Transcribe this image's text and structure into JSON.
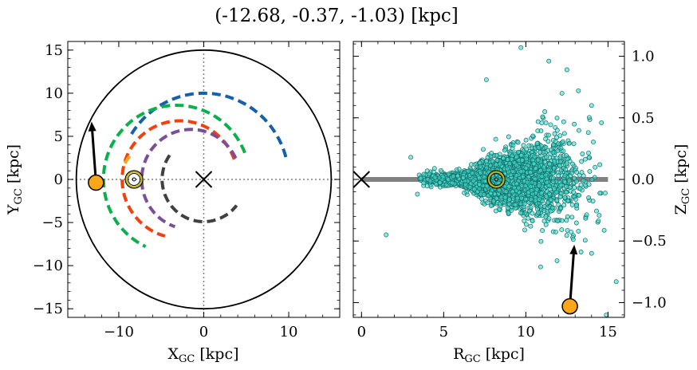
{
  "figure": {
    "title": "(-12.68, -0.37, -1.03) [kpc]"
  },
  "chart_data": [
    {
      "type": "line",
      "panel": "left",
      "xlabel": "X<sub>GC</sub> [kpc]",
      "ylabel": "Y<sub>GC</sub> [kpc]",
      "xlabel_main": "X",
      "xlabel_sub": "GC",
      "xlabel_unit": " [kpc]",
      "ylabel_main": "Y",
      "ylabel_sub": "GC",
      "ylabel_unit": " [kpc]",
      "xlim": [
        -16,
        16
      ],
      "ylim": [
        -16,
        16
      ],
      "xticks": [
        -10,
        0,
        10
      ],
      "xtick_labels": [
        "−10",
        "0",
        "10"
      ],
      "yticks": [
        -15,
        -10,
        -5,
        0,
        5,
        10,
        15
      ],
      "ytick_labels": [
        "−15",
        "−10",
        "−5",
        "0",
        "5",
        "10",
        "15"
      ],
      "grid": false,
      "reference_lines": [
        {
          "orientation": "vertical",
          "value": 0,
          "style": "dotted",
          "color": "#808080"
        },
        {
          "orientation": "horizontal",
          "value": 0,
          "style": "dotted",
          "color": "#808080"
        }
      ],
      "boundary_circle": {
        "center": [
          0,
          0
        ],
        "radius": 15,
        "color": "#000000"
      },
      "galactic_center_marker": {
        "x": 0,
        "y": 0,
        "symbol": "x",
        "color": "#000000"
      },
      "sun_marker": {
        "x": -8.2,
        "y": 0.0,
        "symbol": "circled-dot",
        "color": "#c8b400"
      },
      "target_marker": {
        "x": -12.68,
        "y": -0.37,
        "color": "#f9a61b"
      },
      "target_arrow": {
        "from": [
          -12.68,
          -0.37
        ],
        "to": [
          -13.2,
          6.7
        ],
        "color": "#000000"
      },
      "series": [
        {
          "color": "#1560a8",
          "style": "dashed",
          "center": [
            0,
            0
          ],
          "radius": 10.0,
          "angle_start_deg": 15,
          "angle_end_deg": 150
        },
        {
          "color": "#0bb04c",
          "style": "dashed",
          "center": [
            -3.2,
            0
          ],
          "radius": 8.6,
          "angle_start_deg": 21,
          "angle_end_deg": 245
        },
        {
          "color": "#f0410f",
          "style": "dashed",
          "center": [
            -2.8,
            0
          ],
          "radius": 6.8,
          "angle_start_deg": 20,
          "angle_end_deg": 255
        },
        {
          "color": "#7c4e98",
          "style": "dashed",
          "center": [
            -1.5,
            0
          ],
          "radius": 5.8,
          "angle_start_deg": 25,
          "angle_end_deg": 251
        },
        {
          "color": "#404040",
          "style": "dashed",
          "center": [
            0,
            0
          ],
          "radius": 4.9,
          "angle_start_deg": 145,
          "angle_end_deg": 322
        },
        {
          "color": "#f9a61b",
          "style": "dashed",
          "center": [
            -5.5,
            0
          ],
          "radius": 4.2,
          "angle_start_deg": 140,
          "angle_end_deg": 160
        }
      ]
    },
    {
      "type": "scatter",
      "panel": "right",
      "xlabel": "R<sub>GC</sub> [kpc]",
      "ylabel": "Z<sub>GC</sub> [kpc]",
      "xlabel_main": "R",
      "xlabel_sub": "GC",
      "xlabel_unit": " [kpc]",
      "ylabel_main": "Z",
      "ylabel_sub": "GC",
      "ylabel_unit": " [kpc]",
      "xlim": [
        -0.5,
        16.0
      ],
      "ylim": [
        -1.12,
        1.12
      ],
      "xticks": [
        0,
        5,
        10,
        15
      ],
      "xtick_labels": [
        "0",
        "5",
        "10",
        "15"
      ],
      "yticks": [
        -1.0,
        -0.5,
        0.0,
        0.5,
        1.0
      ],
      "ytick_labels": [
        "−1.0",
        "−0.5",
        "0.0",
        "0.5",
        "1.0"
      ],
      "yaxis_side": "right",
      "grid": false,
      "disk_line": {
        "x": [
          0,
          15
        ],
        "y": 0.0,
        "color": "#808080"
      },
      "galactic_center_marker": {
        "x": 0,
        "y": 0,
        "symbol": "x",
        "color": "#000000"
      },
      "sun_marker": {
        "x": 8.2,
        "y": 0.0,
        "symbol": "circled-dot",
        "color": "#c8b400"
      },
      "target_marker": {
        "x": 12.68,
        "y": -1.03,
        "color": "#f9a61b"
      },
      "target_arrow": {
        "from": [
          12.68,
          -1.03
        ],
        "to": [
          12.95,
          -0.53
        ],
        "color": "#000000"
      },
      "point_color": "#40e0d0",
      "point_edge": "#1a6b66",
      "points_described": "about 3000 stars concentrated near R = 4 to 13 kpc, |Z| < 0.2 kpc, flaring to larger |Z| at larger R",
      "point_count": 3000,
      "points_sample": [
        [
          9.7,
          1.07
        ],
        [
          11.4,
          0.96
        ],
        [
          7.6,
          0.81
        ],
        [
          12.2,
          0.7
        ],
        [
          13.2,
          0.72
        ],
        [
          14.0,
          0.6
        ],
        [
          14.6,
          0.46
        ],
        [
          1.5,
          -0.45
        ],
        [
          3.0,
          0.18
        ],
        [
          3.4,
          -0.12
        ],
        [
          4.0,
          0.07
        ],
        [
          15.5,
          -0.83
        ],
        [
          14.9,
          -1.1
        ],
        [
          11.9,
          -0.66
        ],
        [
          13.2,
          -0.42
        ],
        [
          14.0,
          -0.6
        ],
        [
          10.9,
          -0.71
        ],
        [
          12.5,
          0.89
        ],
        [
          13.8,
          0.38
        ],
        [
          14.5,
          0.12
        ]
      ]
    }
  ]
}
